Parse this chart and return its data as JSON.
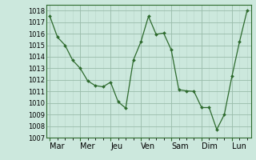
{
  "title": "",
  "x_labels": [
    "Mar",
    "Mer",
    "Jeu",
    "Ven",
    "Sam",
    "Dim",
    "Lun"
  ],
  "ylim": [
    1007,
    1018.5
  ],
  "yticks": [
    1007,
    1008,
    1009,
    1010,
    1011,
    1012,
    1013,
    1014,
    1015,
    1016,
    1017,
    1018
  ],
  "data_x": [
    0,
    1,
    2,
    3,
    4,
    5,
    6,
    7,
    8,
    9,
    10,
    11,
    12,
    13,
    14,
    15,
    16,
    17,
    18,
    19,
    20,
    21,
    22,
    23,
    24,
    25,
    26
  ],
  "data_y": [
    1017.5,
    1015.7,
    1015.0,
    1013.7,
    1013.0,
    1011.9,
    1011.5,
    1011.4,
    1011.8,
    1010.1,
    1009.55,
    1013.7,
    1015.3,
    1017.5,
    1015.95,
    1016.05,
    1014.6,
    1011.15,
    1011.05,
    1011.0,
    1009.6,
    1009.6,
    1007.7,
    1009.0,
    1012.3,
    1015.3,
    1018.0
  ],
  "x_tick_positions": [
    0,
    4,
    8,
    12,
    16,
    20,
    24
  ],
  "line_color": "#2d6a2d",
  "marker": "D",
  "marker_size": 2.0,
  "bg_color": "#cce8dd",
  "grid_major_color": "#99bbaa",
  "grid_minor_color": "#b8d5c8",
  "tick_label_fontsize": 6,
  "x_tick_fontsize": 7,
  "spine_color": "#2d6a2d"
}
